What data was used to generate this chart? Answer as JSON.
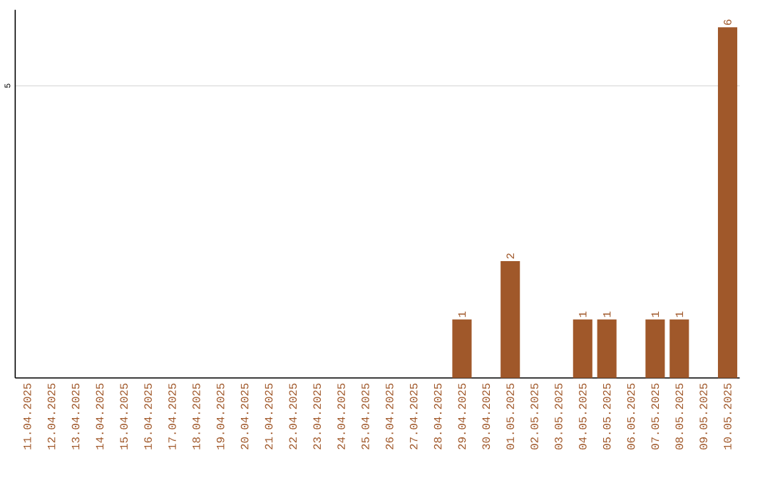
{
  "chart_data": {
    "type": "bar",
    "categories": [
      "11.04.2025",
      "12.04.2025",
      "13.04.2025",
      "14.04.2025",
      "15.04.2025",
      "16.04.2025",
      "17.04.2025",
      "18.04.2025",
      "19.04.2025",
      "20.04.2025",
      "21.04.2025",
      "22.04.2025",
      "23.04.2025",
      "24.04.2025",
      "25.04.2025",
      "26.04.2025",
      "27.04.2025",
      "28.04.2025",
      "29.04.2025",
      "30.04.2025",
      "01.05.2025",
      "02.05.2025",
      "03.05.2025",
      "04.05.2025",
      "05.05.2025",
      "06.05.2025",
      "07.05.2025",
      "08.05.2025",
      "09.05.2025",
      "10.05.2025"
    ],
    "values": [
      null,
      null,
      null,
      null,
      null,
      null,
      null,
      null,
      null,
      null,
      null,
      null,
      null,
      null,
      null,
      null,
      null,
      null,
      1,
      null,
      2,
      null,
      null,
      1,
      1,
      null,
      1,
      1,
      null,
      6
    ],
    "color": "#a0582a",
    "ylim": [
      0,
      6.3
    ],
    "yticks": [
      5
    ],
    "grid": "y",
    "data_labels": true
  }
}
